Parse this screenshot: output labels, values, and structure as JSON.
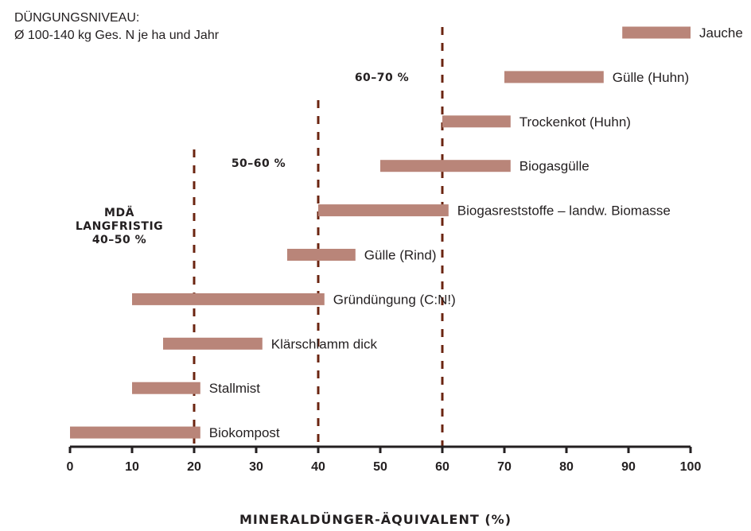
{
  "header": {
    "line1": "DÜNGUNGSNIVEAU:",
    "line2": "Ø 100-140 kg Ges. N je ha und Jahr"
  },
  "zones": [
    {
      "lines": [
        "MDÄ",
        "LANGFRISTIG",
        "40–50 %"
      ]
    },
    {
      "lines": [
        "50–60 %"
      ]
    },
    {
      "lines": [
        "60–70 %"
      ]
    }
  ],
  "colors": {
    "bar": "#b98579",
    "divider": "#6b2410",
    "axis": "#231f20",
    "text": "#231f20"
  },
  "chart_data": {
    "type": "bar",
    "orientation": "horizontal-range",
    "xlabel": "MINERALDÜNGER-ÄQUIVALENT (%)",
    "ylabel": "",
    "xlim": [
      0,
      100
    ],
    "xticks": [
      "0",
      "10",
      "20",
      "30",
      "40",
      "50",
      "60",
      "70",
      "80",
      "90",
      "100"
    ],
    "reference_lines": [
      20,
      40,
      60
    ],
    "grid": false,
    "categories": [
      "Jauche",
      "Gülle (Huhn)",
      "Trockenkot (Huhn)",
      "Biogasgülle",
      "Biogasreststoffe – landw. Biomasse",
      "Gülle (Rind)",
      "Gründüngung (C:N!)",
      "Klärschlamm dick",
      "Stallmist",
      "Biokompost"
    ],
    "ranges": [
      [
        89,
        100
      ],
      [
        70,
        86
      ],
      [
        60,
        71
      ],
      [
        50,
        71
      ],
      [
        40,
        61
      ],
      [
        35,
        46
      ],
      [
        10,
        41
      ],
      [
        15,
        31
      ],
      [
        10,
        21
      ],
      [
        0,
        21
      ]
    ]
  }
}
